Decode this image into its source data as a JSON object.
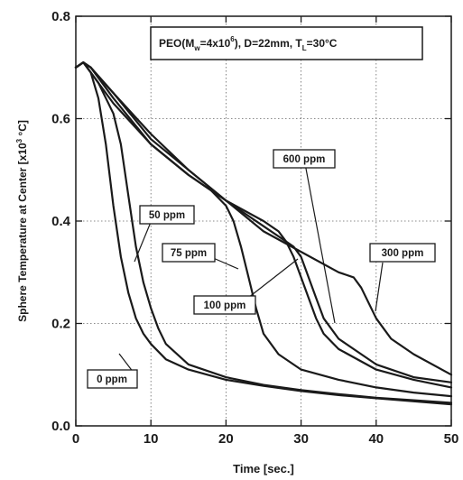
{
  "chart_data": {
    "type": "line",
    "title_parts": {
      "a": "PEO(M",
      "b": "w",
      "c": "=4x10",
      "d": "6",
      "e": "), D=22mm, T",
      "f": "L",
      "g": "=30°C"
    },
    "xlabel": "Time [sec.]",
    "ylabel_parts": {
      "a": "Sphere Temperature at Center [x10",
      "b": "3",
      "c": " °C]"
    },
    "xlim": [
      0,
      50
    ],
    "ylim": [
      0,
      0.8
    ],
    "xticks": [
      0,
      10,
      20,
      30,
      40,
      50
    ],
    "yticks": [
      0.0,
      0.2,
      0.4,
      0.6,
      0.8
    ],
    "xtick_labels": [
      "0",
      "10",
      "20",
      "30",
      "40",
      "50"
    ],
    "ytick_labels": [
      "0.0",
      "0.2",
      "0.4",
      "0.6",
      "0.8"
    ],
    "grid": true,
    "series": [
      {
        "name": "0 ppm",
        "x": [
          0,
          1,
          2,
          3,
          4,
          5,
          6,
          7,
          8,
          9,
          10,
          12,
          15,
          20,
          25,
          30,
          35,
          40,
          45,
          50
        ],
        "y": [
          0.7,
          0.71,
          0.69,
          0.64,
          0.55,
          0.43,
          0.33,
          0.26,
          0.21,
          0.18,
          0.16,
          0.13,
          0.11,
          0.09,
          0.078,
          0.068,
          0.06,
          0.054,
          0.048,
          0.042
        ]
      },
      {
        "name": "50 ppm",
        "x": [
          0,
          1,
          2,
          3,
          4,
          5,
          6,
          7,
          8,
          9,
          10,
          11,
          12,
          15,
          20,
          25,
          30,
          35,
          40,
          45,
          50
        ],
        "y": [
          0.7,
          0.71,
          0.69,
          0.67,
          0.64,
          0.61,
          0.55,
          0.45,
          0.35,
          0.28,
          0.23,
          0.19,
          0.16,
          0.12,
          0.095,
          0.08,
          0.07,
          0.062,
          0.055,
          0.05,
          0.045
        ]
      },
      {
        "name": "75 ppm",
        "x": [
          0,
          1,
          2,
          5,
          10,
          15,
          18,
          20,
          21,
          22,
          23,
          24,
          25,
          27,
          30,
          35,
          40,
          45,
          50
        ],
        "y": [
          0.7,
          0.71,
          0.7,
          0.64,
          0.55,
          0.49,
          0.46,
          0.43,
          0.4,
          0.35,
          0.29,
          0.23,
          0.18,
          0.14,
          0.11,
          0.09,
          0.075,
          0.065,
          0.058
        ]
      },
      {
        "name": "100 ppm",
        "x": [
          0,
          1,
          2,
          5,
          10,
          15,
          20,
          25,
          27,
          28,
          29,
          30,
          31,
          32,
          33,
          35,
          40,
          45,
          50
        ],
        "y": [
          0.7,
          0.71,
          0.7,
          0.65,
          0.56,
          0.5,
          0.44,
          0.4,
          0.38,
          0.36,
          0.33,
          0.29,
          0.25,
          0.21,
          0.18,
          0.15,
          0.11,
          0.09,
          0.075
        ]
      },
      {
        "name": "300 ppm",
        "x": [
          0,
          1,
          2,
          5,
          10,
          15,
          20,
          25,
          30,
          35,
          37,
          38,
          39,
          40,
          41,
          42,
          45,
          50
        ],
        "y": [
          0.7,
          0.71,
          0.7,
          0.65,
          0.57,
          0.5,
          0.44,
          0.38,
          0.34,
          0.3,
          0.29,
          0.27,
          0.24,
          0.21,
          0.19,
          0.17,
          0.14,
          0.1
        ]
      },
      {
        "name": "600 ppm",
        "x": [
          0,
          1,
          2,
          5,
          10,
          15,
          20,
          22,
          25,
          28,
          29,
          30,
          31,
          32,
          33,
          35,
          40,
          45,
          50
        ],
        "y": [
          0.7,
          0.71,
          0.69,
          0.63,
          0.55,
          0.49,
          0.44,
          0.42,
          0.39,
          0.36,
          0.35,
          0.33,
          0.29,
          0.25,
          0.21,
          0.17,
          0.12,
          0.095,
          0.085
        ]
      }
    ],
    "annotations": [
      {
        "name": "600 ppm"
      },
      {
        "name": "50 ppm"
      },
      {
        "name": "75 ppm"
      },
      {
        "name": "300 ppm"
      },
      {
        "name": "100 ppm"
      },
      {
        "name": "0 ppm"
      }
    ]
  }
}
